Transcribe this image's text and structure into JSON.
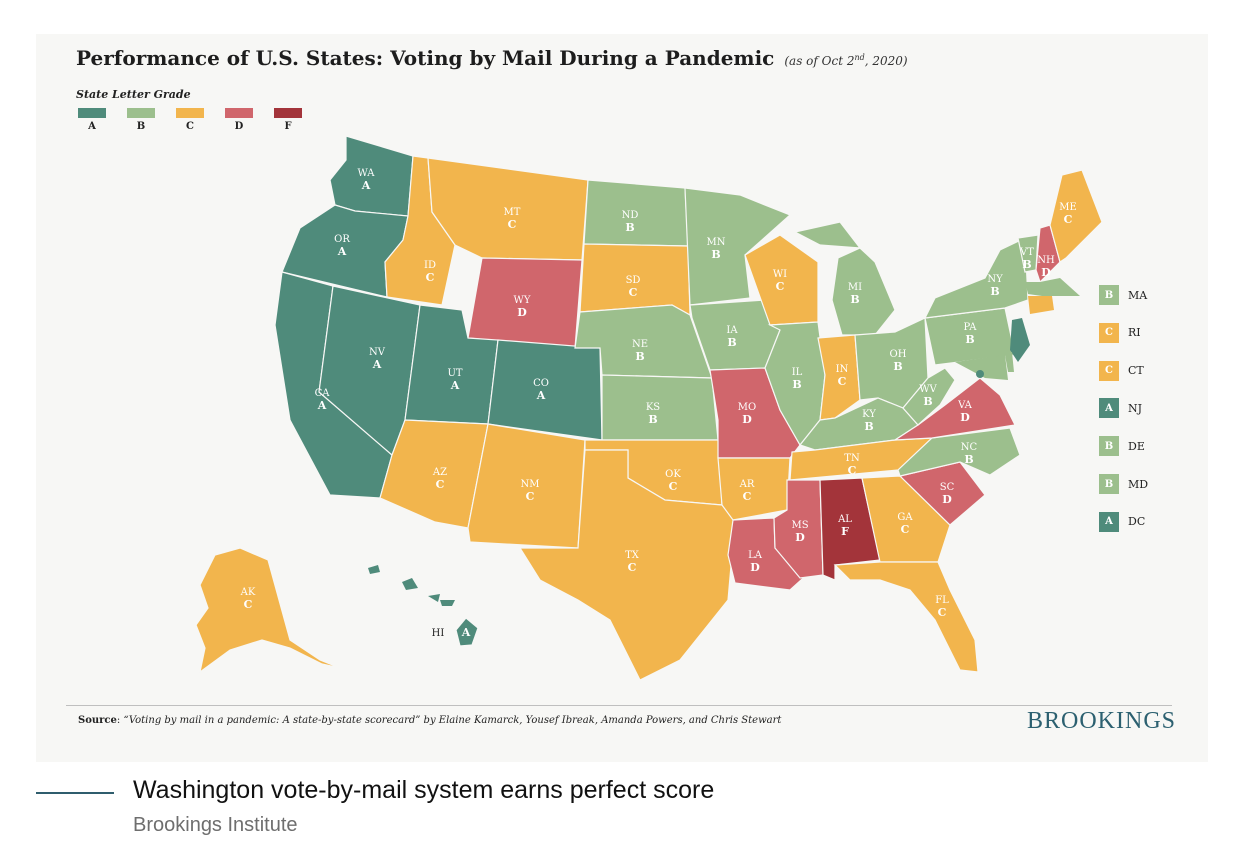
{
  "header": {
    "title": "Performance of U.S. States: Voting by Mail During a Pandemic",
    "date_prefix": "(as of Oct 2",
    "date_sup": "nd",
    "date_suffix": ", 2020)"
  },
  "legend": {
    "title": "State Letter Grade",
    "grades": [
      {
        "letter": "A",
        "color": "#4f8b7b"
      },
      {
        "letter": "B",
        "color": "#9cbf8d"
      },
      {
        "letter": "C",
        "color": "#f2b54d"
      },
      {
        "letter": "D",
        "color": "#d0666c"
      },
      {
        "letter": "F",
        "color": "#a3343a"
      }
    ]
  },
  "states": [
    {
      "id": "wa",
      "abbr": "WA",
      "grade": "A"
    },
    {
      "id": "or",
      "abbr": "OR",
      "grade": "A"
    },
    {
      "id": "ca",
      "abbr": "CA",
      "grade": "A"
    },
    {
      "id": "nv",
      "abbr": "NV",
      "grade": "A"
    },
    {
      "id": "id",
      "abbr": "ID",
      "grade": "C"
    },
    {
      "id": "mt",
      "abbr": "MT",
      "grade": "C"
    },
    {
      "id": "wy",
      "abbr": "WY",
      "grade": "D"
    },
    {
      "id": "ut",
      "abbr": "UT",
      "grade": "A"
    },
    {
      "id": "co",
      "abbr": "CO",
      "grade": "A"
    },
    {
      "id": "az",
      "abbr": "AZ",
      "grade": "C"
    },
    {
      "id": "nm",
      "abbr": "NM",
      "grade": "C"
    },
    {
      "id": "nd",
      "abbr": "ND",
      "grade": "B"
    },
    {
      "id": "sd",
      "abbr": "SD",
      "grade": "C"
    },
    {
      "id": "ne",
      "abbr": "NE",
      "grade": "B"
    },
    {
      "id": "ks",
      "abbr": "KS",
      "grade": "B"
    },
    {
      "id": "ok",
      "abbr": "OK",
      "grade": "C"
    },
    {
      "id": "tx",
      "abbr": "TX",
      "grade": "C"
    },
    {
      "id": "mn",
      "abbr": "MN",
      "grade": "B"
    },
    {
      "id": "ia",
      "abbr": "IA",
      "grade": "B"
    },
    {
      "id": "mo",
      "abbr": "MO",
      "grade": "D"
    },
    {
      "id": "ar",
      "abbr": "AR",
      "grade": "C"
    },
    {
      "id": "la",
      "abbr": "LA",
      "grade": "D"
    },
    {
      "id": "wi",
      "abbr": "WI",
      "grade": "C"
    },
    {
      "id": "il",
      "abbr": "IL",
      "grade": "B"
    },
    {
      "id": "mi",
      "abbr": "MI",
      "grade": "B"
    },
    {
      "id": "in",
      "abbr": "IN",
      "grade": "C"
    },
    {
      "id": "oh",
      "abbr": "OH",
      "grade": "B"
    },
    {
      "id": "ky",
      "abbr": "KY",
      "grade": "B"
    },
    {
      "id": "tn",
      "abbr": "TN",
      "grade": "C"
    },
    {
      "id": "ms",
      "abbr": "MS",
      "grade": "D"
    },
    {
      "id": "al",
      "abbr": "AL",
      "grade": "F"
    },
    {
      "id": "ga",
      "abbr": "GA",
      "grade": "C"
    },
    {
      "id": "fl",
      "abbr": "FL",
      "grade": "C"
    },
    {
      "id": "sc",
      "abbr": "SC",
      "grade": "D"
    },
    {
      "id": "nc",
      "abbr": "NC",
      "grade": "B"
    },
    {
      "id": "va",
      "abbr": "VA",
      "grade": "D"
    },
    {
      "id": "wv",
      "abbr": "WV",
      "grade": "B"
    },
    {
      "id": "pa",
      "abbr": "PA",
      "grade": "B"
    },
    {
      "id": "ny",
      "abbr": "NY",
      "grade": "B"
    },
    {
      "id": "vt",
      "abbr": "VT",
      "grade": "B"
    },
    {
      "id": "nh",
      "abbr": "NH",
      "grade": "D"
    },
    {
      "id": "me",
      "abbr": "ME",
      "grade": "C"
    },
    {
      "id": "ak",
      "abbr": "AK",
      "grade": "C"
    },
    {
      "id": "hi",
      "abbr": "HI",
      "grade": "A"
    }
  ],
  "small_states": [
    {
      "abbr": "MA",
      "grade": "B"
    },
    {
      "abbr": "RI",
      "grade": "C"
    },
    {
      "abbr": "CT",
      "grade": "C"
    },
    {
      "abbr": "NJ",
      "grade": "A"
    },
    {
      "abbr": "DE",
      "grade": "B"
    },
    {
      "abbr": "MD",
      "grade": "B"
    },
    {
      "abbr": "DC",
      "grade": "A"
    }
  ],
  "footer": {
    "source_label": "Source",
    "source_text": "“Voting by mail in a pandemic: A state-by-state scorecard” by Elaine Kamarck, Yousef Ibreak, Amanda Powers, and Chris Stewart",
    "brand": "BROOKINGS"
  },
  "caption": {
    "title": "Washington vote-by-mail system earns perfect score",
    "credit": "Brookings Institute"
  }
}
